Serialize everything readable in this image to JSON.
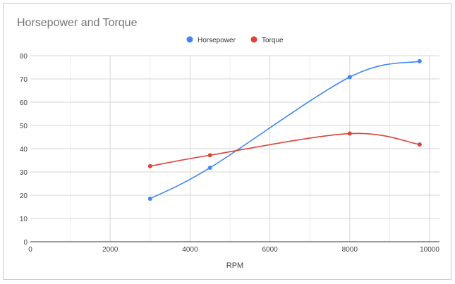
{
  "chart_data": {
    "type": "line",
    "title": "Horsepower and Torque",
    "xlabel": "RPM",
    "ylabel": "",
    "xlim": [
      0,
      10000
    ],
    "ylim": [
      0,
      80
    ],
    "x_ticks": [
      "0",
      "2000",
      "4000",
      "6000",
      "8000",
      "10000"
    ],
    "y_ticks": [
      "0",
      "10",
      "20",
      "30",
      "40",
      "50",
      "60",
      "70",
      "80"
    ],
    "grid": true,
    "smooth": true,
    "legend_position": "top",
    "x": [
      3000,
      4500,
      8000,
      9750
    ],
    "series": [
      {
        "name": "Horsepower",
        "color": "#4285f4",
        "values": [
          18.5,
          31.8,
          70.8,
          77.6
        ]
      },
      {
        "name": "Torque",
        "color": "#db4437",
        "values": [
          32.5,
          37.2,
          46.5,
          41.8
        ]
      }
    ]
  }
}
